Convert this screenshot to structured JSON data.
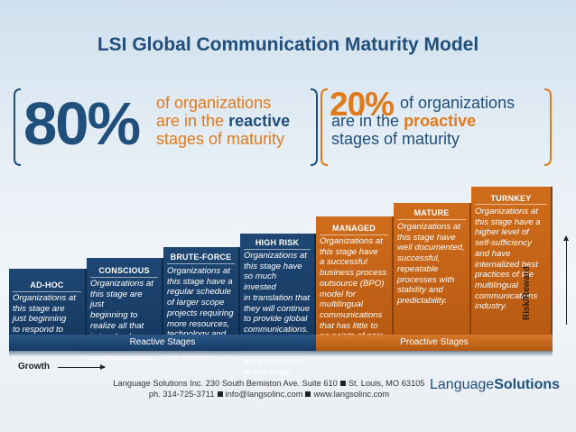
{
  "title": "LSI Global Communication Maturity Model",
  "stats": {
    "reactive": {
      "percent": "80%",
      "line1": "of organizations",
      "line2_pre": "are in the ",
      "line2_hl": "reactive",
      "line3": "stages of maturity"
    },
    "proactive": {
      "percent": "20%",
      "line1": "of organizations",
      "line2_pre": "are in the ",
      "line2_hl": "proactive",
      "line3": "stages of maturity"
    }
  },
  "colors": {
    "blue": "#1f4773",
    "orange": "#d06d1c",
    "title": "#1f4f7a",
    "accent": "#e07a1a"
  },
  "stages": [
    {
      "label": "AD-HOC",
      "desc": "Organizations at\nthis stage are\njust beginning\nto respond to\ninternational\nmarket demands."
    },
    {
      "label": "CONSCIOUS",
      "desc": "Organizations at\nthis stage are just\nbeginning to\nrealize all that\nis involved\nin multilingual\ncommunications."
    },
    {
      "label": "BRUTE-FORCE",
      "desc": "Organizations at\nthis stage have a\nregular schedule\nof larger scope\nprojects requiring\nmore resources,\ntechnology and\nprocesses. Risks\nare tangible."
    },
    {
      "label": "HIGH RISK",
      "desc": "Organizations at\nthis stage have\nso much invested\nin translation that\nthey will continue\nto provide global\ncommunications.\nAwareness and\nmanagement of\nrisks are critical\nat this stage."
    },
    {
      "label": "MANAGED",
      "desc": "Organizations at\nthis stage have\na successful\nbusiness process\noutsource (BPO)\nmodel for\nmultilingual\ncommunications\nthat has little to\nno points of pain."
    },
    {
      "label": "MATURE",
      "desc": "Organizations at\nthis stage have\nwell documented,\nsuccessful,\nrepeatable\nprocesses with\nstability and\npredictability."
    },
    {
      "label": "TURNKEY",
      "desc": "Organizations at\nthis stage have a\nhigher level of\nself-sufficiency\nand have\ninternalized best\npractices of the\nmultilingual\ncommunications\nindustry."
    }
  ],
  "base": {
    "reactive": "Reactive Stages",
    "proactive": "Proactive Stages"
  },
  "axes": {
    "growth": "Growth",
    "risk": "Risk/Reward"
  },
  "footer": {
    "line1a": "Language Solutions Inc. 230 South Bemiston Ave. Suite 610",
    "line1b": "St. Louis, MO 63105",
    "line2a": "ph. 314-725-3711",
    "line2b": "info@langsolinc.com",
    "line2c": "www.langsolinc.com"
  },
  "brand": {
    "part1": "Language",
    "part2": "Solutions"
  }
}
